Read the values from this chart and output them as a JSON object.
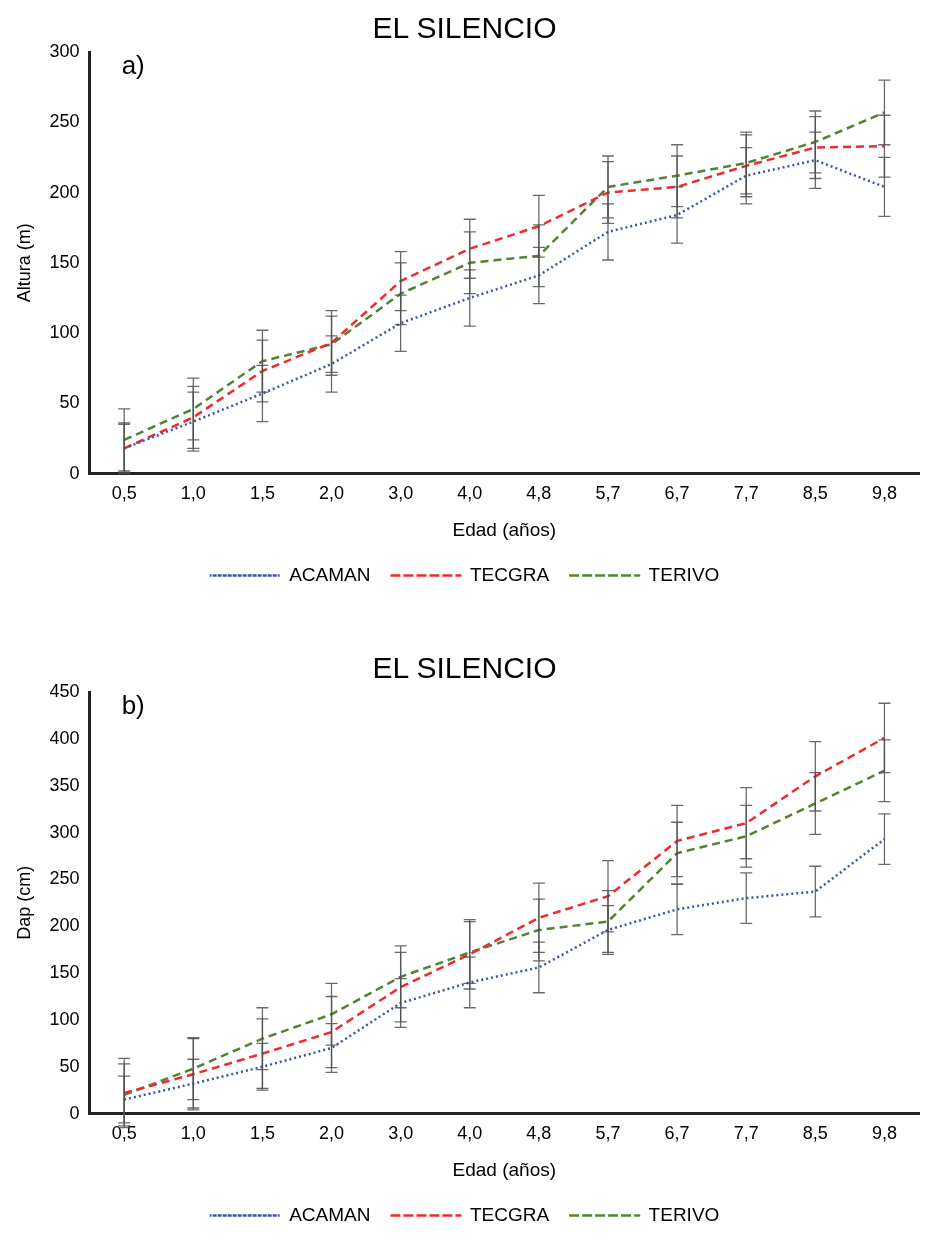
{
  "chart_data": [
    {
      "type": "line",
      "title": "EL SILENCIO",
      "xlabel": "Edad (años)",
      "ylabel": "Altura (m)",
      "annotations": [
        "a)"
      ],
      "categories": [
        "0,5",
        "1,0",
        "1,5",
        "2,0",
        "3,0",
        "4,0",
        "4,8",
        "5,7",
        "6,7",
        "7,7",
        "8,5",
        "9,8"
      ],
      "ylim": [
        0,
        300
      ],
      "yticks": [
        0,
        50,
        100,
        150,
        200,
        250,
        300
      ],
      "grid": false,
      "legend": "bottom",
      "marker": "none",
      "series": [
        {
          "name": "ACAMAN",
          "color": "#3a55a4",
          "line_style": "dotted",
          "values": [
            18,
            37,
            57,
            78,
            107,
            125,
            141,
            172,
            184,
            212,
            223,
            204
          ],
          "errors": [
            17,
            21,
            20,
            20,
            20,
            20,
            20,
            20,
            20,
            20,
            20,
            21
          ]
        },
        {
          "name": "TECGRA",
          "color": "#ee2b2b",
          "line_style": "dashed",
          "values": [
            18,
            40,
            73,
            93,
            137,
            160,
            176,
            200,
            204,
            219,
            232,
            233
          ],
          "errors": [
            18,
            22,
            22,
            23,
            21,
            21,
            22,
            22,
            22,
            22,
            22,
            22
          ]
        },
        {
          "name": "TERIVO",
          "color": "#548235",
          "line_style": "dashed",
          "values": [
            24,
            46,
            80,
            92,
            128,
            150,
            155,
            204,
            212,
            221,
            236,
            257
          ],
          "errors": [
            22,
            22,
            22,
            20,
            22,
            22,
            22,
            22,
            22,
            22,
            22,
            23
          ]
        }
      ]
    },
    {
      "type": "line",
      "title": "EL SILENCIO",
      "xlabel": "Edad (años)",
      "ylabel": "Dap (cm)",
      "annotations": [
        "b)"
      ],
      "categories": [
        "0,5",
        "1,0",
        "1,5",
        "2,0",
        "3,0",
        "4,0",
        "4,8",
        "5,7",
        "6,7",
        "7,7",
        "8,5",
        "9,8"
      ],
      "ylim": [
        0,
        450
      ],
      "yticks": [
        0,
        50,
        100,
        150,
        200,
        250,
        300,
        350,
        400,
        450
      ],
      "grid": false,
      "legend": "bottom",
      "marker": "none",
      "series": [
        {
          "name": "ACAMAN",
          "color": "#3a55a4",
          "line_style": "dotted",
          "values": [
            15,
            32,
            50,
            70,
            118,
            140,
            156,
            196,
            218,
            230,
            237,
            293
          ],
          "errors": [
            25,
            26,
            25,
            26,
            26,
            27,
            27,
            26,
            27,
            27,
            27,
            27
          ]
        },
        {
          "name": "TECGRA",
          "color": "#ee2b2b",
          "line_style": "dashed",
          "values": [
            22,
            42,
            64,
            87,
            135,
            170,
            209,
            232,
            291,
            310,
            360,
            401
          ],
          "errors": [
            37,
            38,
            37,
            38,
            37,
            37,
            37,
            38,
            38,
            38,
            37,
            37
          ]
        },
        {
          "name": "TERIVO",
          "color": "#548235",
          "line_style": "dashed",
          "values": [
            20,
            48,
            80,
            106,
            146,
            172,
            196,
            205,
            278,
            296,
            331,
            366
          ],
          "errors": [
            33,
            33,
            33,
            33,
            33,
            33,
            33,
            33,
            33,
            33,
            33,
            33
          ]
        }
      ]
    }
  ]
}
